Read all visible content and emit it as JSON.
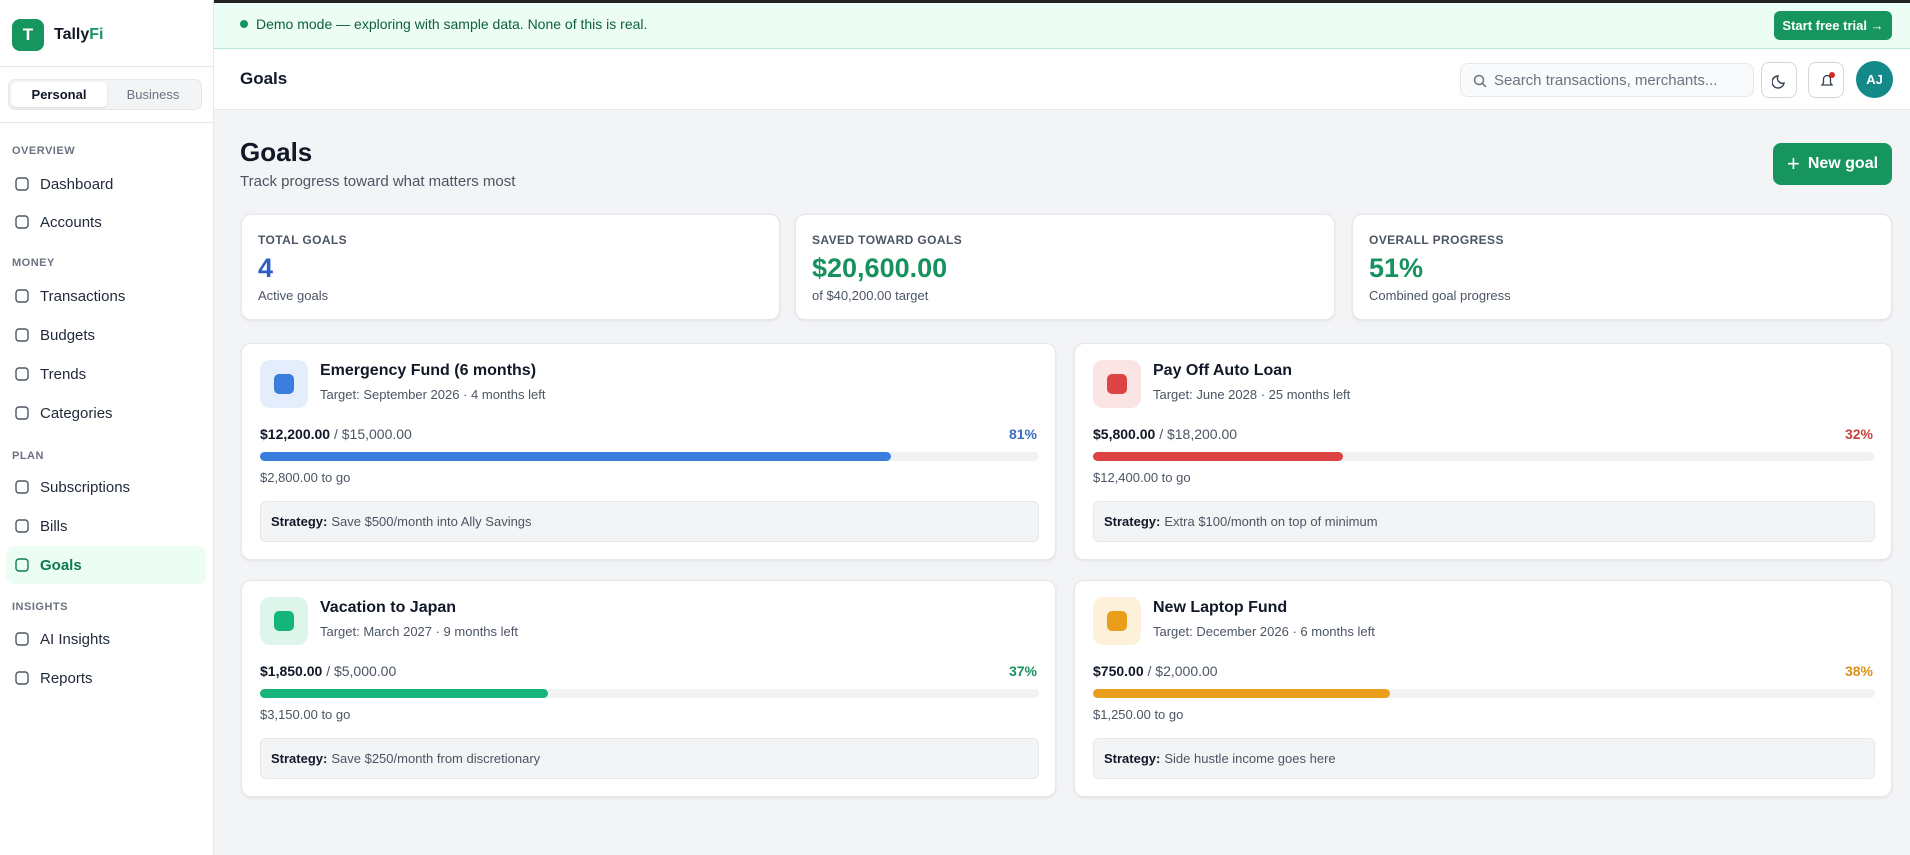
{
  "banner": {
    "text": "Demo mode — exploring with sample data. None of this is real.",
    "button": "Start free trial →"
  },
  "brand": {
    "logo_letter": "T",
    "name_a": "Tally",
    "name_b": "Fi"
  },
  "mode_toggle": {
    "active": "Personal",
    "other": "Business"
  },
  "nav": [
    {
      "label": "OVERVIEW",
      "items": [
        "Dashboard",
        "Accounts"
      ]
    },
    {
      "label": "MONEY",
      "items": [
        "Transactions",
        "Budgets",
        "Trends",
        "Categories"
      ]
    },
    {
      "label": "PLAN",
      "items": [
        "Subscriptions",
        "Bills",
        "Goals"
      ]
    },
    {
      "label": "INSIGHTS",
      "items": [
        "AI Insights",
        "Reports"
      ]
    }
  ],
  "nav_active": "Goals",
  "header": {
    "title": "Goals",
    "search_placeholder": "Search transactions, merchants...",
    "avatar": "AJ"
  },
  "page": {
    "title": "Goals",
    "subtitle": "Track progress toward what matters most",
    "new_goal_button": "New goal"
  },
  "stats": [
    {
      "label": "TOTAL GOALS",
      "value": "4",
      "note": "Active goals",
      "color": "#2f5fc4"
    },
    {
      "label": "SAVED TOWARD GOALS",
      "value": "$20,600.00",
      "note": "of $40,200.00 target",
      "color": "#17925f"
    },
    {
      "label": "OVERALL PROGRESS",
      "value": "51%",
      "note": "Combined goal progress",
      "color": "#17925f"
    }
  ],
  "strategy_label": "Strategy:",
  "goals": [
    {
      "name": "Emergency Fund (6 months)",
      "target": "Target: September 2026 · 4 months left",
      "saved": "$12,200.00",
      "total": "/ $15,000.00",
      "progress": 81,
      "progress_label": "81%",
      "to_go": "$2,800.00 to go",
      "strategy": "Save $500/month into Ally Savings",
      "color": "#3b7ddd",
      "label_color": "#3b6fc0",
      "icon_bg": "#e3edfb"
    },
    {
      "name": "Pay Off Auto Loan",
      "target": "Target: June 2028 · 25 months left",
      "saved": "$5,800.00",
      "total": "/ $18,200.00",
      "progress": 32,
      "progress_label": "32%",
      "to_go": "$12,400.00 to go",
      "strategy": "Extra $100/month on top of minimum",
      "color": "#dd4343",
      "label_color": "#c94040",
      "icon_bg": "#fbe4e4"
    },
    {
      "name": "Vacation to Japan",
      "target": "Target: March 2027 · 9 months left",
      "saved": "$1,850.00",
      "total": "/ $5,000.00",
      "progress": 37,
      "progress_label": "37%",
      "to_go": "$3,150.00 to go",
      "strategy": "Save $250/month from discretionary",
      "color": "#14b47a",
      "label_color": "#17925f",
      "icon_bg": "#def5ec"
    },
    {
      "name": "New Laptop Fund",
      "target": "Target: December 2026 · 6 months left",
      "saved": "$750.00",
      "total": "/ $2,000.00",
      "progress": 38,
      "progress_label": "38%",
      "to_go": "$1,250.00 to go",
      "strategy": "Side hustle income goes here",
      "color": "#ea9f1c",
      "label_color": "#d99116",
      "icon_bg": "#fdf1dc"
    }
  ]
}
